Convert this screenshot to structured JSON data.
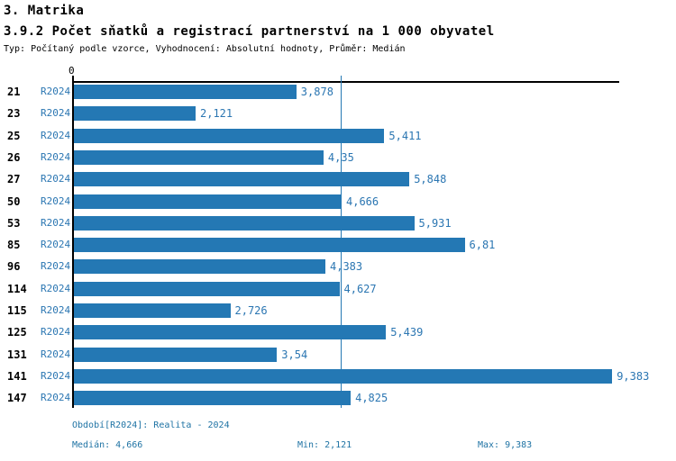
{
  "title": "3. Matrika",
  "subtitle": "3.9.2 Počet sňatků a registrací partnerství na 1 000 obyvatel",
  "meta": "Typ: Počítaný podle vzorce, Vyhodnocení: Absolutní hodnoty, Průměr: Medián",
  "axis": {
    "zero_label": "0"
  },
  "colors": {
    "bar": "#2478b4",
    "blue_text": "#2b76b2",
    "footer_text": "#1f73a4",
    "median_line": "#2478b4",
    "axis": "#000000"
  },
  "chart_data": {
    "type": "bar",
    "orientation": "horizontal",
    "title": "3.9.2 Počet sňatků a registrací partnerství na 1 000 obyvatel",
    "xlabel": "",
    "ylabel": "",
    "xlim": [
      0,
      9.5
    ],
    "grid": false,
    "legend_position": "none",
    "series_label": "R2024",
    "categories": [
      "21",
      "23",
      "25",
      "26",
      "27",
      "50",
      "53",
      "85",
      "96",
      "114",
      "115",
      "125",
      "131",
      "141",
      "147"
    ],
    "values": [
      3.878,
      2.121,
      5.411,
      4.35,
      5.848,
      4.666,
      5.931,
      6.81,
      4.383,
      4.627,
      2.726,
      5.439,
      3.54,
      9.383,
      4.825
    ],
    "value_labels": [
      "3,878",
      "2,121",
      "5,411",
      "4,35",
      "5,848",
      "4,666",
      "5,931",
      "6,81",
      "4,383",
      "4,627",
      "2,726",
      "5,439",
      "3,54",
      "9,383",
      "4,825"
    ],
    "median": 4.666,
    "min": 2.121,
    "max": 9.383
  },
  "footer": {
    "period": "Období[R2024]: Realita - 2024",
    "median": "Medián: 4,666",
    "min": "Min: 2,121",
    "max": "Max: 9,383"
  }
}
